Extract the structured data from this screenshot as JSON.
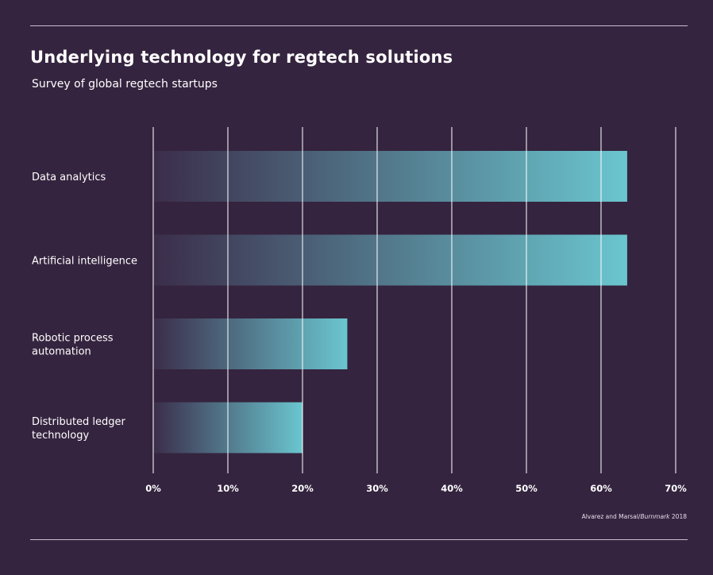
{
  "header": {
    "title": "Underlying technology for regtech solutions",
    "subtitle": "Survey of global regtech startups"
  },
  "source": {
    "prefix": "Alvarez and Marsal/",
    "italic": "Burnmark",
    "suffix": " 2018"
  },
  "colors": {
    "background": "#35243f",
    "bar_start": "#3b2d4a",
    "bar_end": "#6ac6cf",
    "gridline": "#ffffff"
  },
  "chart_data": {
    "type": "bar",
    "orientation": "horizontal",
    "title": "Underlying technology for regtech solutions",
    "subtitle": "Survey of global regtech startups",
    "categories": [
      [
        "Data analytics"
      ],
      [
        "Artificial intelligence"
      ],
      [
        "Robotic process",
        "automation"
      ],
      [
        "Distributed ledger",
        "technology"
      ]
    ],
    "values": [
      63.5,
      63.5,
      26,
      20
    ],
    "unit": "%",
    "xlim": [
      0,
      70
    ],
    "xticks": [
      0,
      10,
      20,
      30,
      40,
      50,
      60,
      70
    ],
    "xtick_labels": [
      "0%",
      "10%",
      "20%",
      "30%",
      "40%",
      "50%",
      "60%",
      "70%"
    ],
    "grid": true,
    "legend": "none"
  }
}
